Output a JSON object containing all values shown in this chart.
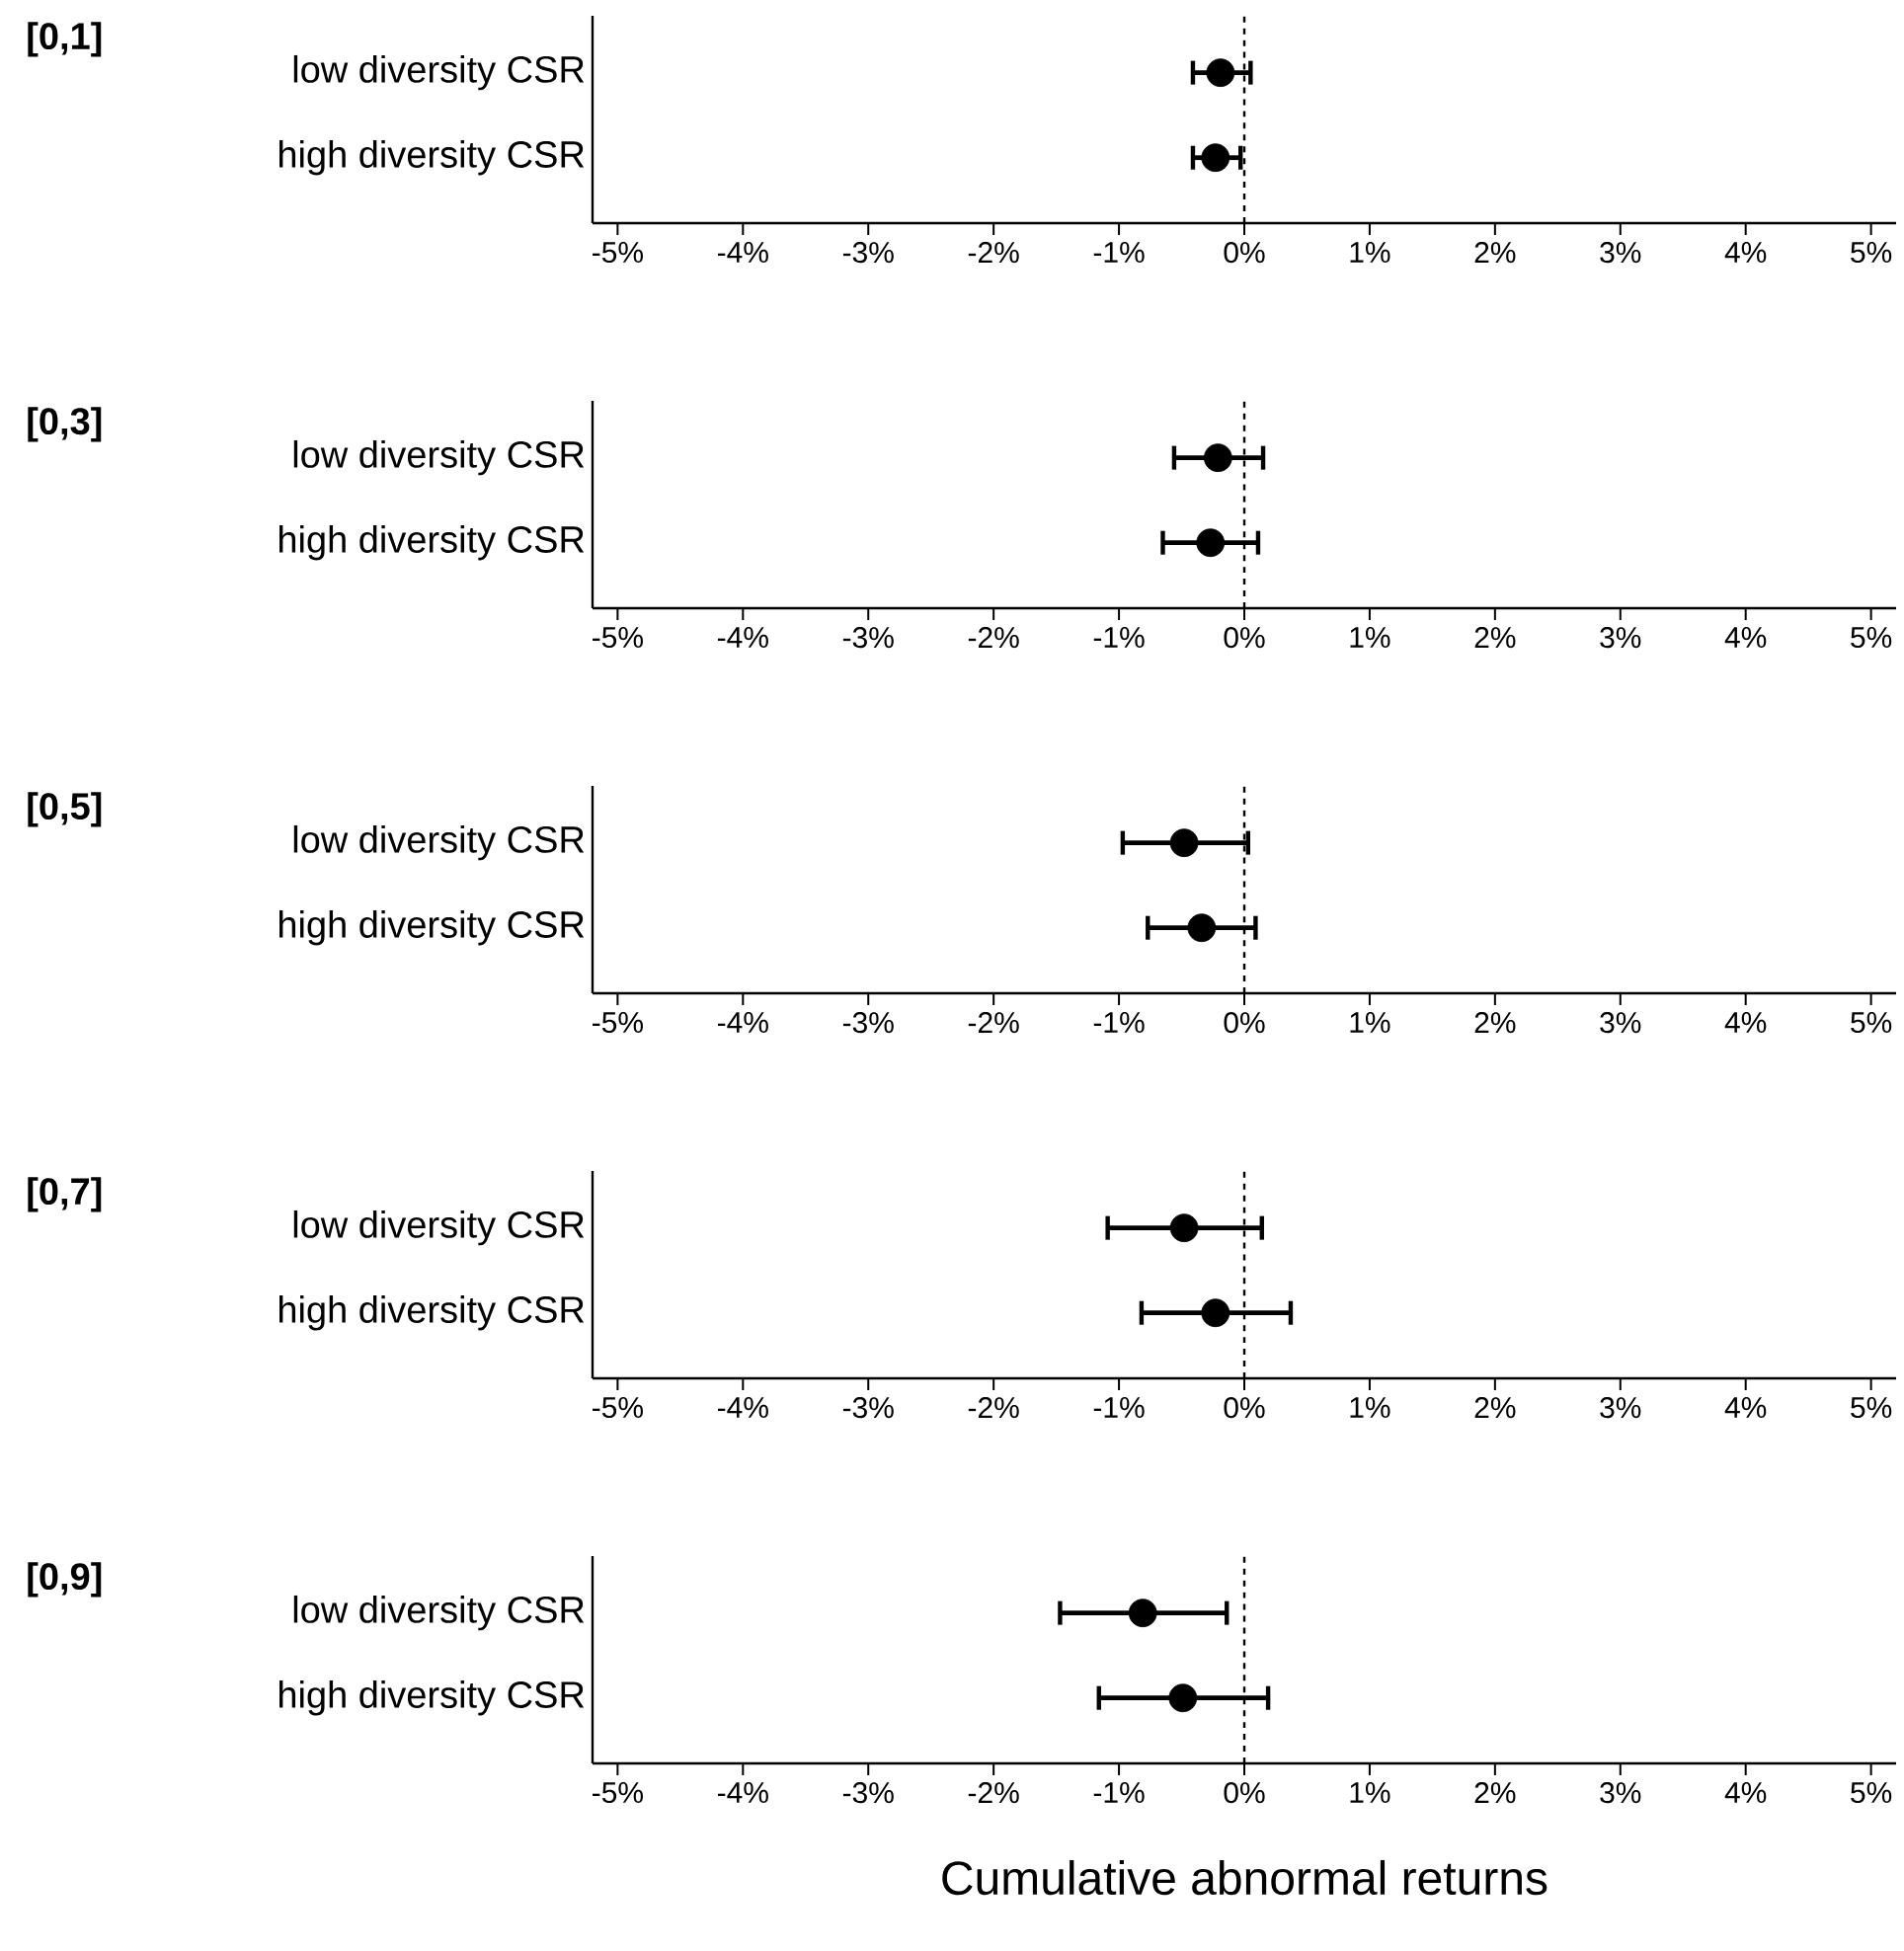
{
  "chart_data": [
    {
      "type": "scatter",
      "orientation": "horizontal",
      "title": "[0,1]",
      "categories": [
        "low diversity CSR",
        "high diversity CSR"
      ],
      "marker": "circle",
      "xlim": [
        -5.2,
        5.2
      ],
      "xticks": [
        {
          "value": -5,
          "label": "-5%"
        },
        {
          "value": -4,
          "label": "-4%"
        },
        {
          "value": -3,
          "label": "-3%"
        },
        {
          "value": -2,
          "label": "-2%"
        },
        {
          "value": -1,
          "label": "-1%"
        },
        {
          "value": 0,
          "label": "0%"
        },
        {
          "value": 1,
          "label": "1%"
        },
        {
          "value": 2,
          "label": "2%"
        },
        {
          "value": 3,
          "label": "3%"
        },
        {
          "value": 4,
          "label": "4%"
        },
        {
          "value": 5,
          "label": "5%"
        }
      ],
      "ref_lines": [
        {
          "axis": "x",
          "value": 0,
          "line_style": "dashed",
          "color": "#000000"
        }
      ],
      "series": [
        {
          "color": "#000000",
          "values": [
            -0.19,
            -0.23
          ],
          "errors": [
            [
              -0.41,
              0.05
            ],
            [
              -0.41,
              -0.03
            ]
          ]
        }
      ]
    },
    {
      "type": "scatter",
      "orientation": "horizontal",
      "title": "[0,3]",
      "categories": [
        "low diversity CSR",
        "high diversity CSR"
      ],
      "marker": "circle",
      "xlim": [
        -5.2,
        5.2
      ],
      "xticks": [
        {
          "value": -5,
          "label": "-5%"
        },
        {
          "value": -4,
          "label": "-4%"
        },
        {
          "value": -3,
          "label": "-3%"
        },
        {
          "value": -2,
          "label": "-2%"
        },
        {
          "value": -1,
          "label": "-1%"
        },
        {
          "value": 0,
          "label": "0%"
        },
        {
          "value": 1,
          "label": "1%"
        },
        {
          "value": 2,
          "label": "2%"
        },
        {
          "value": 3,
          "label": "3%"
        },
        {
          "value": 4,
          "label": "4%"
        },
        {
          "value": 5,
          "label": "5%"
        }
      ],
      "ref_lines": [
        {
          "axis": "x",
          "value": 0,
          "line_style": "dashed",
          "color": "#000000"
        }
      ],
      "series": [
        {
          "color": "#000000",
          "values": [
            -0.21,
            -0.27
          ],
          "errors": [
            [
              -0.56,
              0.15
            ],
            [
              -0.65,
              0.11
            ]
          ]
        }
      ]
    },
    {
      "type": "scatter",
      "orientation": "horizontal",
      "title": "[0,5]",
      "categories": [
        "low diversity CSR",
        "high diversity CSR"
      ],
      "marker": "circle",
      "xlim": [
        -5.2,
        5.2
      ],
      "xticks": [
        {
          "value": -5,
          "label": "-5%"
        },
        {
          "value": -4,
          "label": "-4%"
        },
        {
          "value": -3,
          "label": "-3%"
        },
        {
          "value": -2,
          "label": "-2%"
        },
        {
          "value": -1,
          "label": "-1%"
        },
        {
          "value": 0,
          "label": "0%"
        },
        {
          "value": 1,
          "label": "1%"
        },
        {
          "value": 2,
          "label": "2%"
        },
        {
          "value": 3,
          "label": "3%"
        },
        {
          "value": 4,
          "label": "4%"
        },
        {
          "value": 5,
          "label": "5%"
        }
      ],
      "ref_lines": [
        {
          "axis": "x",
          "value": 0,
          "line_style": "dashed",
          "color": "#000000"
        }
      ],
      "series": [
        {
          "color": "#000000",
          "values": [
            -0.48,
            -0.34
          ],
          "errors": [
            [
              -0.97,
              0.03
            ],
            [
              -0.77,
              0.09
            ]
          ]
        }
      ]
    },
    {
      "type": "scatter",
      "orientation": "horizontal",
      "title": "[0,7]",
      "categories": [
        "low diversity CSR",
        "high diversity CSR"
      ],
      "marker": "circle",
      "xlim": [
        -5.2,
        5.2
      ],
      "xticks": [
        {
          "value": -5,
          "label": "-5%"
        },
        {
          "value": -4,
          "label": "-4%"
        },
        {
          "value": -3,
          "label": "-3%"
        },
        {
          "value": -2,
          "label": "-2%"
        },
        {
          "value": -1,
          "label": "-1%"
        },
        {
          "value": 0,
          "label": "0%"
        },
        {
          "value": 1,
          "label": "1%"
        },
        {
          "value": 2,
          "label": "2%"
        },
        {
          "value": 3,
          "label": "3%"
        },
        {
          "value": 4,
          "label": "4%"
        },
        {
          "value": 5,
          "label": "5%"
        }
      ],
      "ref_lines": [
        {
          "axis": "x",
          "value": 0,
          "line_style": "dashed",
          "color": "#000000"
        }
      ],
      "series": [
        {
          "color": "#000000",
          "values": [
            -0.48,
            -0.23
          ],
          "errors": [
            [
              -1.09,
              0.14
            ],
            [
              -0.82,
              0.37
            ]
          ]
        }
      ]
    },
    {
      "type": "scatter",
      "orientation": "horizontal",
      "title": "[0,9]",
      "categories": [
        "low diversity CSR",
        "high diversity CSR"
      ],
      "marker": "circle",
      "xlim": [
        -5.2,
        5.2
      ],
      "xlabel": "Cumulative abnormal returns",
      "xticks": [
        {
          "value": -5,
          "label": "-5%"
        },
        {
          "value": -4,
          "label": "-4%"
        },
        {
          "value": -3,
          "label": "-3%"
        },
        {
          "value": -2,
          "label": "-2%"
        },
        {
          "value": -1,
          "label": "-1%"
        },
        {
          "value": 0,
          "label": "0%"
        },
        {
          "value": 1,
          "label": "1%"
        },
        {
          "value": 2,
          "label": "2%"
        },
        {
          "value": 3,
          "label": "3%"
        },
        {
          "value": 4,
          "label": "4%"
        },
        {
          "value": 5,
          "label": "5%"
        }
      ],
      "ref_lines": [
        {
          "axis": "x",
          "value": 0,
          "line_style": "dashed",
          "color": "#000000"
        }
      ],
      "series": [
        {
          "color": "#000000",
          "values": [
            -0.81,
            -0.49
          ],
          "errors": [
            [
              -1.47,
              -0.14
            ],
            [
              -1.16,
              0.19
            ]
          ]
        }
      ]
    }
  ]
}
